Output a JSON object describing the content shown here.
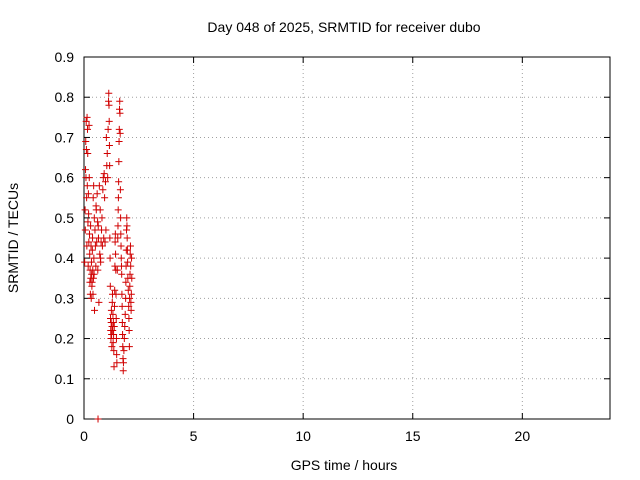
{
  "chart_data": {
    "type": "scatter",
    "title": "Day 048 of 2025, SRMTID for receiver dubo",
    "xlabel": "GPS time / hours",
    "ylabel": "SRMTID / TECUs",
    "xlim": [
      0,
      24
    ],
    "ylim": [
      0,
      0.9
    ],
    "xticks": [
      0,
      5,
      10,
      15,
      20
    ],
    "yticks": [
      0,
      0.1,
      0.2,
      0.3,
      0.4,
      0.5,
      0.6,
      0.7,
      0.8,
      0.9
    ],
    "grid": true,
    "marker": "+",
    "marker_color": "#d00000",
    "series": [
      {
        "points": [
          [
            0.03,
            0.39
          ],
          [
            0.05,
            0.52
          ],
          [
            0.06,
            0.47
          ],
          [
            0.07,
            0.62
          ],
          [
            0.08,
            0.69
          ],
          [
            0.09,
            0.6
          ],
          [
            0.1,
            0.74
          ],
          [
            0.11,
            0.67
          ],
          [
            0.12,
            0.55
          ],
          [
            0.13,
            0.43
          ],
          [
            0.14,
            0.75
          ],
          [
            0.15,
            0.58
          ],
          [
            0.16,
            0.72
          ],
          [
            0.17,
            0.66
          ],
          [
            0.18,
            0.49
          ],
          [
            0.19,
            0.38
          ],
          [
            0.2,
            0.56
          ],
          [
            0.21,
            0.51
          ],
          [
            0.22,
            0.44
          ],
          [
            0.23,
            0.73
          ],
          [
            0.24,
            0.6
          ],
          [
            0.25,
            0.46
          ],
          [
            0.26,
            0.41
          ],
          [
            0.27,
            0.34
          ],
          [
            0.28,
            0.37
          ],
          [
            0.29,
            0.31
          ],
          [
            0.3,
            0.48
          ],
          [
            0.31,
            0.35
          ],
          [
            0.32,
            0.43
          ],
          [
            0.33,
            0.3
          ],
          [
            0.34,
            0.39
          ],
          [
            0.35,
            0.36
          ],
          [
            0.36,
            0.33
          ],
          [
            0.37,
            0.34
          ],
          [
            0.38,
            0.42
          ],
          [
            0.39,
            0.45
          ],
          [
            0.4,
            0.37
          ],
          [
            0.41,
            0.31
          ],
          [
            0.42,
            0.55
          ],
          [
            0.43,
            0.35
          ],
          [
            0.44,
            0.58
          ],
          [
            0.45,
            0.4
          ],
          [
            0.46,
            0.36
          ],
          [
            0.47,
            0.5
          ],
          [
            0.48,
            0.27
          ],
          [
            0.5,
            0.47
          ],
          [
            0.52,
            0.43
          ],
          [
            0.54,
            0.38
          ],
          [
            0.55,
            0.53
          ],
          [
            0.56,
            0.52
          ],
          [
            0.58,
            0.44
          ],
          [
            0.6,
            0.56
          ],
          [
            0.62,
            0.49
          ],
          [
            0.63,
            0.37
          ],
          [
            0.64,
            0.0
          ],
          [
            0.65,
            0.48
          ],
          [
            0.66,
            0.45
          ],
          [
            0.68,
            0.29
          ],
          [
            0.7,
            0.58
          ],
          [
            0.72,
            0.41
          ],
          [
            0.74,
            0.52
          ],
          [
            0.75,
            0.4
          ],
          [
            0.76,
            0.39
          ],
          [
            0.78,
            0.44
          ],
          [
            0.8,
            0.47
          ],
          [
            0.82,
            0.5
          ],
          [
            0.84,
            0.43
          ],
          [
            0.86,
            0.57
          ],
          [
            0.88,
            0.6
          ],
          [
            0.9,
            0.45
          ],
          [
            0.92,
            0.61
          ],
          [
            0.94,
            0.55
          ],
          [
            0.96,
            0.44
          ],
          [
            0.98,
            0.59
          ],
          [
            1.0,
            0.47
          ],
          [
            1.02,
            0.7
          ],
          [
            1.04,
            0.63
          ],
          [
            1.06,
            0.66
          ],
          [
            1.08,
            0.6
          ],
          [
            1.1,
            0.72
          ],
          [
            1.12,
            0.79
          ],
          [
            1.13,
            0.81
          ],
          [
            1.14,
            0.78
          ],
          [
            1.15,
            0.74
          ],
          [
            1.16,
            0.68
          ],
          [
            1.17,
            0.63
          ],
          [
            1.18,
            0.45
          ],
          [
            1.19,
            0.4
          ],
          [
            1.2,
            0.33
          ],
          [
            1.21,
            0.25
          ],
          [
            1.22,
            0.22
          ],
          [
            1.23,
            0.2
          ],
          [
            1.24,
            0.24
          ],
          [
            1.25,
            0.27
          ],
          [
            1.26,
            0.21
          ],
          [
            1.27,
            0.18
          ],
          [
            1.28,
            0.23
          ],
          [
            1.29,
            0.29
          ],
          [
            1.3,
            0.31
          ],
          [
            1.31,
            0.22
          ],
          [
            1.32,
            0.26
          ],
          [
            1.33,
            0.19
          ],
          [
            1.34,
            0.24
          ],
          [
            1.35,
            0.21
          ],
          [
            1.36,
            0.17
          ],
          [
            1.37,
            0.13
          ],
          [
            1.38,
            0.23
          ],
          [
            1.39,
            0.28
          ],
          [
            1.4,
            0.32
          ],
          [
            1.41,
            0.38
          ],
          [
            1.42,
            0.44
          ],
          [
            1.43,
            0.46
          ],
          [
            1.44,
            0.41
          ],
          [
            1.45,
            0.37
          ],
          [
            1.46,
            0.31
          ],
          [
            1.47,
            0.25
          ],
          [
            1.48,
            0.2
          ],
          [
            1.49,
            0.16
          ],
          [
            1.5,
            0.14
          ],
          [
            1.52,
            0.37
          ],
          [
            1.54,
            0.45
          ],
          [
            1.55,
            0.48
          ],
          [
            1.56,
            0.52
          ],
          [
            1.57,
            0.55
          ],
          [
            1.58,
            0.59
          ],
          [
            1.59,
            0.64
          ],
          [
            1.6,
            0.69
          ],
          [
            1.61,
            0.72
          ],
          [
            1.62,
            0.77
          ],
          [
            1.63,
            0.79
          ],
          [
            1.64,
            0.76
          ],
          [
            1.65,
            0.71
          ],
          [
            1.66,
            0.57
          ],
          [
            1.67,
            0.5
          ],
          [
            1.68,
            0.46
          ],
          [
            1.69,
            0.43
          ],
          [
            1.7,
            0.4
          ],
          [
            1.71,
            0.38
          ],
          [
            1.72,
            0.36
          ],
          [
            1.73,
            0.31
          ],
          [
            1.74,
            0.28
          ],
          [
            1.75,
            0.24
          ],
          [
            1.76,
            0.21
          ],
          [
            1.77,
            0.18
          ],
          [
            1.78,
            0.15
          ],
          [
            1.79,
            0.12
          ],
          [
            1.8,
            0.14
          ],
          [
            1.82,
            0.17
          ],
          [
            1.84,
            0.2
          ],
          [
            1.86,
            0.23
          ],
          [
            1.88,
            0.26
          ],
          [
            1.9,
            0.3
          ],
          [
            1.91,
            0.34
          ],
          [
            1.92,
            0.38
          ],
          [
            1.93,
            0.42
          ],
          [
            1.94,
            0.47
          ],
          [
            1.95,
            0.5
          ],
          [
            1.96,
            0.48
          ],
          [
            1.97,
            0.45
          ],
          [
            1.98,
            0.42
          ],
          [
            1.99,
            0.39
          ],
          [
            2.0,
            0.35
          ],
          [
            2.02,
            0.32
          ],
          [
            2.04,
            0.28
          ],
          [
            2.05,
            0.25
          ],
          [
            2.06,
            0.22
          ],
          [
            2.07,
            0.18
          ],
          [
            2.08,
            0.3
          ],
          [
            2.09,
            0.33
          ],
          [
            2.1,
            0.36
          ],
          [
            2.11,
            0.41
          ],
          [
            2.12,
            0.43
          ],
          [
            2.13,
            0.38
          ],
          [
            2.14,
            0.29
          ],
          [
            2.15,
            0.27
          ],
          [
            2.16,
            0.31
          ],
          [
            2.17,
            0.4
          ],
          [
            2.18,
            0.35
          ]
        ]
      }
    ]
  }
}
